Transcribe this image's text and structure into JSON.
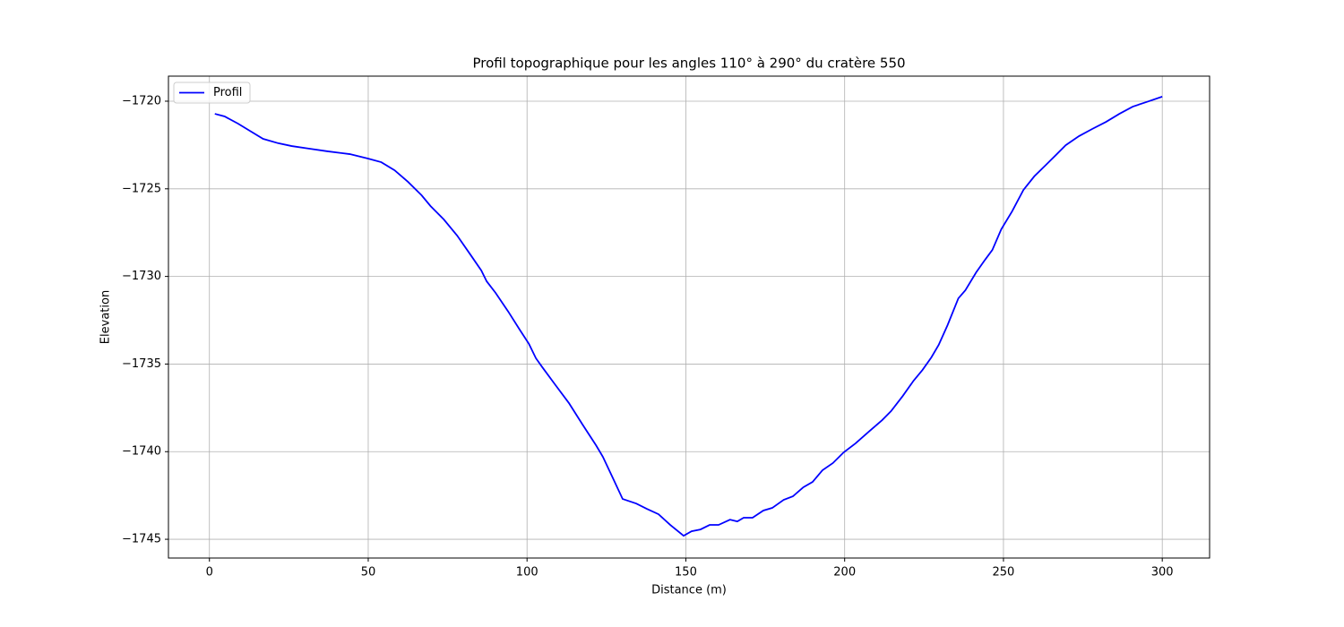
{
  "chart_data": {
    "type": "line",
    "title": "Profil topographique pour les angles 110° à 290° du cratère 550",
    "x_label": "Distance (m)",
    "y_label": "Elevation",
    "x": [
      1.7,
      4.8,
      9.0,
      12.7,
      16.9,
      21.7,
      25.9,
      31.5,
      37.2,
      44.2,
      49.9,
      54.1,
      58.3,
      62.5,
      66.8,
      69.6,
      73.8,
      78.0,
      82.3,
      85.6,
      87.3,
      90.1,
      94.1,
      97.7,
      100.6,
      102.8,
      104.8,
      109.0,
      113.2,
      117.5,
      121.7,
      123.9,
      126.8,
      130.1,
      134.4,
      137.7,
      141.4,
      145.1,
      149.3,
      151.8,
      154.6,
      157.5,
      160.3,
      163.9,
      166.2,
      168.2,
      171.0,
      174.4,
      177.2,
      180.8,
      183.7,
      187.0,
      189.9,
      193.0,
      196.3,
      199.7,
      203.4,
      207.6,
      211.8,
      214.6,
      218.3,
      221.7,
      224.5,
      227.3,
      229.6,
      232.4,
      235.8,
      238.0,
      241.4,
      244.2,
      246.5,
      249.3,
      252.7,
      256.3,
      259.7,
      263.4,
      266.8,
      269.6,
      273.8,
      278.0,
      282.3,
      286.5,
      290.7,
      295.0,
      300.0
    ],
    "series": [
      {
        "name": "Profil",
        "color": "#0000ff",
        "values": [
          -1720.72,
          -1720.87,
          -1721.28,
          -1721.69,
          -1722.15,
          -1722.4,
          -1722.56,
          -1722.71,
          -1722.86,
          -1723.02,
          -1723.27,
          -1723.48,
          -1723.94,
          -1724.6,
          -1725.37,
          -1725.98,
          -1726.75,
          -1727.67,
          -1728.79,
          -1729.66,
          -1730.28,
          -1730.94,
          -1732.01,
          -1733.04,
          -1733.85,
          -1734.67,
          -1735.18,
          -1736.21,
          -1737.23,
          -1738.46,
          -1739.63,
          -1740.3,
          -1741.42,
          -1742.7,
          -1742.96,
          -1743.26,
          -1743.57,
          -1744.18,
          -1744.8,
          -1744.54,
          -1744.44,
          -1744.18,
          -1744.18,
          -1743.88,
          -1743.98,
          -1743.77,
          -1743.77,
          -1743.36,
          -1743.21,
          -1742.75,
          -1742.55,
          -1742.03,
          -1741.73,
          -1741.06,
          -1740.65,
          -1740.04,
          -1739.53,
          -1738.86,
          -1738.2,
          -1737.69,
          -1736.82,
          -1735.95,
          -1735.34,
          -1734.62,
          -1733.91,
          -1732.78,
          -1731.25,
          -1730.79,
          -1729.77,
          -1729.05,
          -1728.49,
          -1727.31,
          -1726.29,
          -1725.06,
          -1724.29,
          -1723.63,
          -1723.02,
          -1722.51,
          -1721.99,
          -1721.58,
          -1721.18,
          -1720.72,
          -1720.31,
          -1720.05,
          -1719.74
        ]
      }
    ],
    "xlim": [
      -12.9,
      314.9
    ],
    "ylim": [
      -1746.07,
      -1718.57
    ],
    "xticks": [
      0,
      50,
      100,
      150,
      200,
      250,
      300
    ],
    "yticks": [
      {
        "value": -1745,
        "label": "−1745"
      },
      {
        "value": -1740,
        "label": "−1740"
      },
      {
        "value": -1735,
        "label": "−1735"
      },
      {
        "value": -1730,
        "label": "−1730"
      },
      {
        "value": -1725,
        "label": "−1725"
      },
      {
        "value": -1720,
        "label": "−1720"
      }
    ],
    "grid": true,
    "legend": "upper left"
  }
}
